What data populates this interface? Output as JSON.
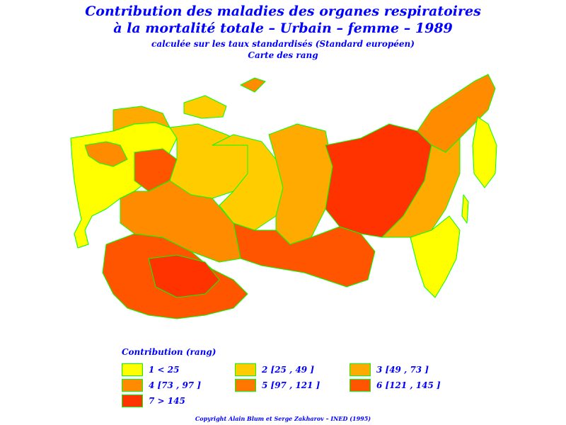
{
  "title": {
    "line1": "Contribution des maladies des organes respiratoires",
    "line2": "à la mortalité totale  –  Urbain  –  femme  –  1989",
    "line3": "calculée sur les taux standardisés (Standard européen)",
    "line4": "Carte des rang"
  },
  "legend": {
    "title": "Contribution  (rang)",
    "items": [
      {
        "label": "1  <  25",
        "color": "#ffff00"
      },
      {
        "label": "2  [25  ,  49  ]",
        "color": "#ffcc00"
      },
      {
        "label": "3  [49  ,  73  ]",
        "color": "#ffaa00"
      },
      {
        "label": "4  [73  ,  97  ]",
        "color": "#ff8c00"
      },
      {
        "label": "5  [97  ,  121  ]",
        "color": "#ff7700"
      },
      {
        "label": "6  [121  ,  145  ]",
        "color": "#ff5500"
      },
      {
        "label": "7  >  145",
        "color": "#ff3300"
      }
    ]
  },
  "copyright": "Copyright  Alain  Blum  et  Serge  Zakharov  –  INED  (1995)",
  "colors": {
    "text": "#0000ff",
    "border": "#00ff00"
  }
}
